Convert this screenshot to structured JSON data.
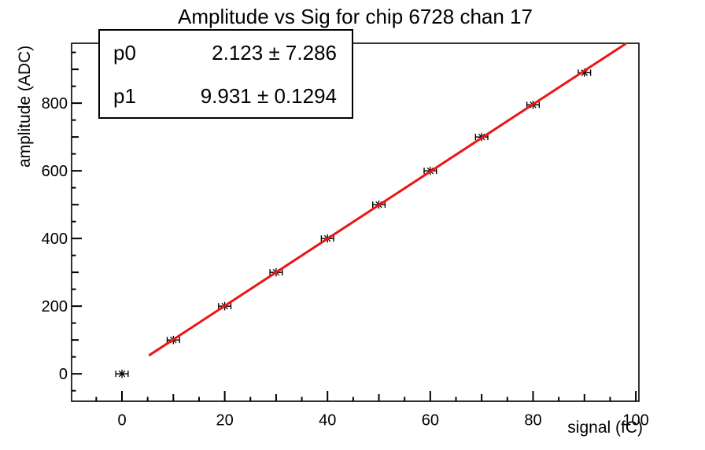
{
  "title": "Amplitude vs Sig for chip 6728 chan 17",
  "stats_box": {
    "rows": [
      {
        "param": "p0",
        "value": "2.123 ± 7.286"
      },
      {
        "param": "p1",
        "value": "9.931 ± 0.1294"
      }
    ]
  },
  "chart_data": {
    "type": "scatter",
    "title": "Amplitude vs Sig for chip 6728 chan 17",
    "xlabel": "signal (fC)",
    "ylabel": "amplitude (ADC)",
    "xlim": [
      -9.8,
      100.6
    ],
    "ylim": [
      -81,
      977
    ],
    "grid": false,
    "legend": "none",
    "points": {
      "x": [
        0,
        10,
        20,
        30,
        40,
        50,
        60,
        70,
        80,
        90
      ],
      "y": [
        0,
        100,
        200,
        300,
        400,
        500,
        600,
        700,
        795,
        890
      ],
      "x_err": 1.2,
      "marker": "star-8-spoke",
      "color": "#000000"
    },
    "fit_line": {
      "model": "p0 + p1*x",
      "p0": 2.123,
      "p0_err": 7.286,
      "p1": 9.931,
      "p1_err": 0.1294,
      "draw_range": [
        5.4,
        98.0
      ],
      "color": "#ed1515",
      "width": 3
    },
    "x_axis": {
      "major_ticks": [
        0,
        20,
        40,
        60,
        80,
        100
      ],
      "medium_step": 10,
      "minor_step": 5,
      "tick_labels": [
        "0",
        "20",
        "40",
        "60",
        "80",
        "100"
      ]
    },
    "y_axis": {
      "major_ticks": [
        0,
        200,
        400,
        600,
        800
      ],
      "medium_step": 100,
      "minor_step": 50,
      "tick_labels": [
        "0",
        "200",
        "400",
        "600",
        "800"
      ]
    }
  }
}
